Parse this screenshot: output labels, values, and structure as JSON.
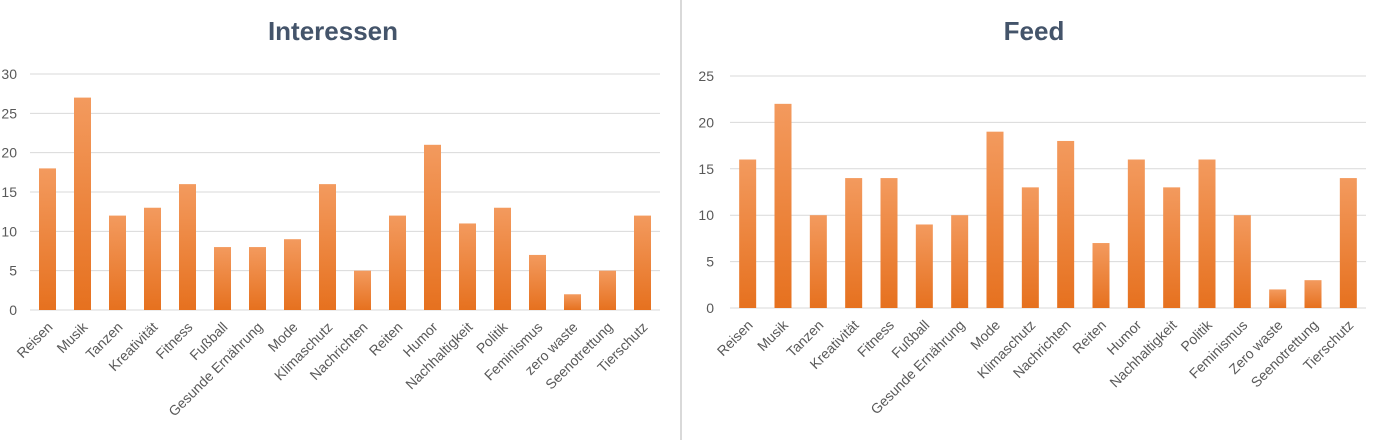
{
  "chart_data": [
    {
      "type": "bar",
      "title": "Interessen",
      "xlabel": "",
      "ylabel": "",
      "ylim": [
        0,
        30
      ],
      "yticks": [
        0,
        5,
        10,
        15,
        20,
        25,
        30
      ],
      "grid": true,
      "bar_color": "#ed7d31",
      "categories": [
        "Reisen",
        "Musik",
        "Tanzen",
        "Kreativität",
        "Fitness",
        "Fußball",
        "Gesunde Ernährung",
        "Mode",
        "Klimaschutz",
        "Nachrichten",
        "Reiten",
        "Humor",
        "Nachhaltigkeit",
        "Politik",
        "Feminismus",
        "zero waste",
        "Seenotrettung",
        "Tierschutz"
      ],
      "values": [
        18,
        27,
        12,
        13,
        16,
        8,
        8,
        9,
        16,
        5,
        12,
        21,
        11,
        13,
        7,
        2,
        5,
        12
      ]
    },
    {
      "type": "bar",
      "title": "Feed",
      "xlabel": "",
      "ylabel": "",
      "ylim": [
        0,
        25
      ],
      "yticks": [
        0,
        5,
        10,
        15,
        20,
        25
      ],
      "grid": true,
      "bar_color": "#ed7d31",
      "categories": [
        "Reisen",
        "Musik",
        "Tanzen",
        "Kreativität",
        "Fitness",
        "Fußball",
        "Gesunde Ernährung",
        "Mode",
        "Klimaschutz",
        "Nachrichten",
        "Reiten",
        "Humor",
        "Nachhaltigkeit",
        "Politik",
        "Feminismus",
        "Zero waste",
        "Seenotrettung",
        "Tierschutz"
      ],
      "values": [
        16,
        22,
        10,
        14,
        14,
        9,
        10,
        19,
        13,
        18,
        7,
        16,
        13,
        16,
        10,
        2,
        3,
        14
      ]
    }
  ]
}
